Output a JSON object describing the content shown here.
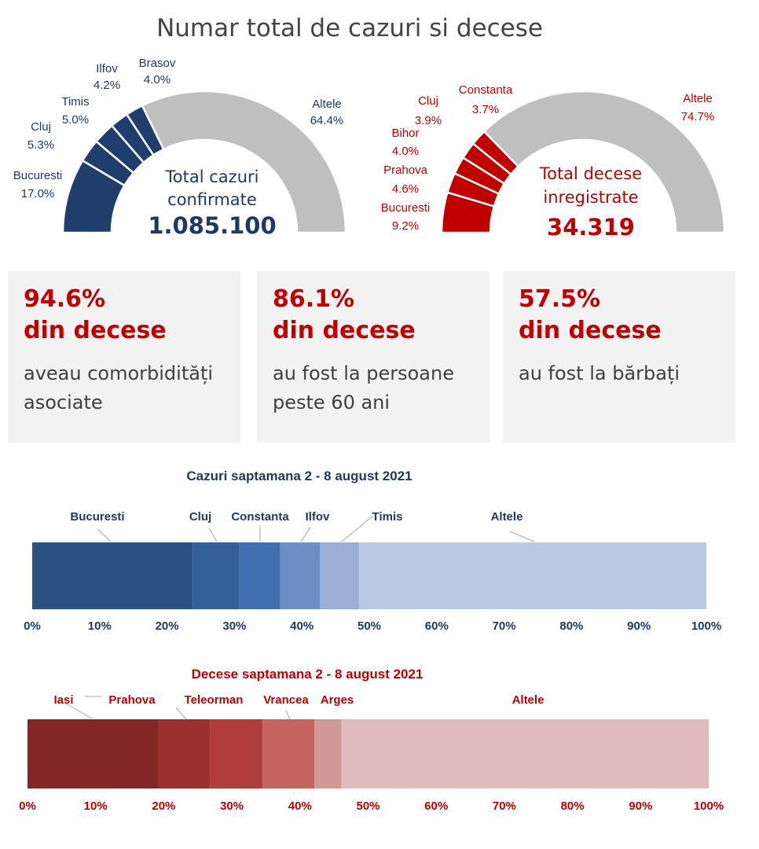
{
  "title": "Numar total de cazuri si decese",
  "chart_data": [
    {
      "type": "pie",
      "variant": "half-donut",
      "center_label": "Total cazuri confirmate",
      "center_label_lines": [
        "Total cazuri",
        "confirmate"
      ],
      "total": "1.085.100",
      "slices": [
        {
          "name": "Bucuresti",
          "value": 17.0,
          "label": "17.0%"
        },
        {
          "name": "Cluj",
          "value": 5.3,
          "label": "5.3%"
        },
        {
          "name": "Timis",
          "value": 5.0,
          "label": "5.0%"
        },
        {
          "name": "Ilfov",
          "value": 4.2,
          "label": "4.2%"
        },
        {
          "name": "Brasov",
          "value": 4.0,
          "label": "4.0%"
        },
        {
          "name": "Altele",
          "value": 64.4,
          "label": "64.4%"
        }
      ],
      "colors": {
        "regions": "#1f3e6e",
        "other": "#bfbfbf",
        "text": "#1f3864"
      }
    },
    {
      "type": "pie",
      "variant": "half-donut",
      "center_label": "Total decese inregistrate",
      "center_label_lines": [
        "Total decese",
        "inregistrate"
      ],
      "total": "34.319",
      "slices": [
        {
          "name": "Bucuresti",
          "value": 9.2,
          "label": "9.2%"
        },
        {
          "name": "Prahova",
          "value": 4.6,
          "label": "4.6%"
        },
        {
          "name": "Bihor",
          "value": 4.0,
          "label": "4.0%"
        },
        {
          "name": "Cluj",
          "value": 3.9,
          "label": "3.9%"
        },
        {
          "name": "Constanta",
          "value": 3.7,
          "label": "3.7%"
        },
        {
          "name": "Altele",
          "value": 74.7,
          "label": "74.7%"
        }
      ],
      "colors": {
        "regions": "#c00000",
        "other": "#bfbfbf",
        "text": "#c00000"
      }
    },
    {
      "type": "bar",
      "variant": "100%-stacked-horizontal",
      "title": "Cazuri saptamana 2 - 8 august 2021",
      "segments": [
        {
          "name": "Bucuresti",
          "value": 23.8,
          "color": "#2b5082"
        },
        {
          "name": "Cluj",
          "value": 6.9,
          "color": "#345f98"
        },
        {
          "name": "Constanta",
          "value": 6.1,
          "color": "#3f6fae"
        },
        {
          "name": "Ilfov",
          "value": 5.9,
          "color": "#6d8fc3"
        },
        {
          "name": "Timis",
          "value": 5.8,
          "color": "#9aafd3"
        },
        {
          "name": "Altele",
          "value": 51.5,
          "color": "#b9c9e3"
        }
      ],
      "ticks": [
        "0%",
        "10%",
        "20%",
        "30%",
        "40%",
        "50%",
        "60%",
        "70%",
        "80%",
        "90%",
        "100%"
      ],
      "xlim": [
        0,
        100
      ],
      "text_color": "#1f3864"
    },
    {
      "type": "bar",
      "variant": "100%-stacked-horizontal",
      "title": "Decese saptamana 2 - 8 august 2021",
      "segments": [
        {
          "name": "Iasi",
          "value": 19.2,
          "color": "#822626"
        },
        {
          "name": "Prahova",
          "value": 7.6,
          "color": "#9c302f"
        },
        {
          "name": "Teleorman",
          "value": 7.7,
          "color": "#b03d3a"
        },
        {
          "name": "Vrancea",
          "value": 7.6,
          "color": "#c5635e"
        },
        {
          "name": "Arges",
          "value": 4.0,
          "color": "#d29896"
        },
        {
          "name": "Altele",
          "value": 53.9,
          "color": "#dfbbbd"
        }
      ],
      "ticks": [
        "0%",
        "10%",
        "20%",
        "30%",
        "40%",
        "50%",
        "60%",
        "70%",
        "80%",
        "90%",
        "100%"
      ],
      "xlim": [
        0,
        100
      ],
      "text_color": "#c00000"
    }
  ],
  "stats": [
    {
      "pct": "94.6%",
      "sub": "din decese",
      "desc": "aveau comorbidități asociate"
    },
    {
      "pct": "86.1%",
      "sub": "din decese",
      "desc": "au fost la persoane peste 60 ani"
    },
    {
      "pct": "57.5%",
      "sub": "din decese",
      "desc": "au fost la bărbați"
    }
  ]
}
